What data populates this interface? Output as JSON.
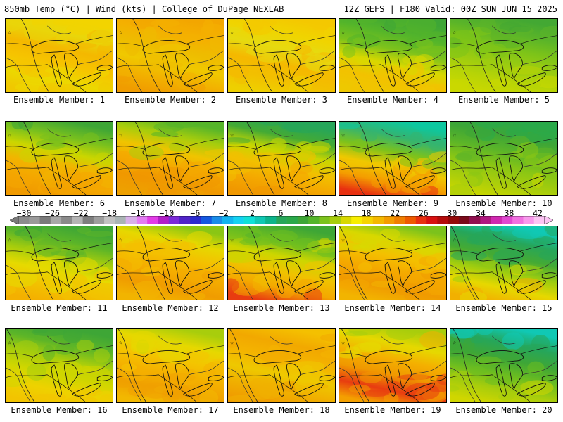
{
  "header": {
    "left": "850mb Temp (°C) | Wind (kts) | College of DuPage NEXLAB",
    "right": "12Z GEFS | F180 Valid: 00Z SUN JUN 15 2025"
  },
  "members": [
    {
      "label": "Ensemble Member: 1",
      "palette": [
        "#f2d400",
        "#e9d60a",
        "#f4b800",
        "#f6c400",
        "#ecd800",
        "#f0c800"
      ]
    },
    {
      "label": "Ensemble Member: 2",
      "palette": [
        "#f3a600",
        "#f4b000",
        "#eebc00",
        "#f0c800",
        "#f2b000",
        "#f09c00"
      ]
    },
    {
      "label": "Ensemble Member: 3",
      "palette": [
        "#f4c800",
        "#f0d400",
        "#e6da10",
        "#f5b800",
        "#f2c000",
        "#eed000"
      ]
    },
    {
      "label": "Ensemble Member: 4",
      "palette": [
        "#3ea636",
        "#54b52a",
        "#7cc21c",
        "#d8d800",
        "#f2c200",
        "#eec800"
      ]
    },
    {
      "label": "Ensemble Member: 5",
      "palette": [
        "#43a833",
        "#5cb528",
        "#7ec418",
        "#9ccc10",
        "#b8d406",
        "#cad800"
      ]
    },
    {
      "label": "Ensemble Member: 6",
      "palette": [
        "#3ea636",
        "#78c01e",
        "#cbd600",
        "#f2b400",
        "#f4a600",
        "#f09a00"
      ]
    },
    {
      "label": "Ensemble Member: 7",
      "palette": [
        "#56b52a",
        "#a8cd0c",
        "#f0c400",
        "#f4a800",
        "#f09800",
        "#eea000"
      ]
    },
    {
      "label": "Ensemble Member: 8",
      "palette": [
        "#26a65a",
        "#44aa34",
        "#c8d600",
        "#f2c000",
        "#f4a800",
        "#f09800"
      ]
    },
    {
      "label": "Ensemble Member: 9",
      "palette": [
        "#0cc8a0",
        "#34b470",
        "#7cc21c",
        "#f0c800",
        "#f49c00",
        "#e83010"
      ]
    },
    {
      "label": "Ensemble Member: 10",
      "palette": [
        "#2aa94a",
        "#3ea636",
        "#5cb528",
        "#8ac614",
        "#a8cd0c",
        "#c6d600"
      ]
    },
    {
      "label": "Ensemble Member: 11",
      "palette": [
        "#3ea636",
        "#5cb528",
        "#a8cd0c",
        "#e6da00",
        "#f2c200",
        "#f4b000"
      ]
    },
    {
      "label": "Ensemble Member: 12",
      "palette": [
        "#8ac614",
        "#e6d800",
        "#f4c000",
        "#f4ac00",
        "#f09c00",
        "#f2b400"
      ]
    },
    {
      "label": "Ensemble Member: 13",
      "palette": [
        "#3ea636",
        "#6cbd20",
        "#cdd600",
        "#f0c200",
        "#f4a800",
        "#e83c10"
      ]
    },
    {
      "label": "Ensemble Member: 14",
      "palette": [
        "#7cc21c",
        "#d8d800",
        "#f4c000",
        "#f4a800",
        "#f09a00",
        "#f2b400"
      ]
    },
    {
      "label": "Ensemble Member: 15",
      "palette": [
        "#10c8b4",
        "#26a65a",
        "#44aa34",
        "#9ccc10",
        "#e6d800",
        "#f2b000"
      ]
    },
    {
      "label": "Ensemble Member: 16",
      "palette": [
        "#3ea636",
        "#5cb528",
        "#a8cd0c",
        "#d0d600",
        "#eed200",
        "#f2c400"
      ]
    },
    {
      "label": "Ensemble Member: 17",
      "palette": [
        "#a8cd0c",
        "#e6d800",
        "#f4c400",
        "#f4b000",
        "#f0a000",
        "#f2b800"
      ]
    },
    {
      "label": "Ensemble Member: 18",
      "palette": [
        "#f4c000",
        "#f2a800",
        "#f4b400",
        "#eec800",
        "#f0b000",
        "#f09c00"
      ]
    },
    {
      "label": "Ensemble Member: 19",
      "palette": [
        "#a8cd0c",
        "#e6d800",
        "#f4b000",
        "#f09800",
        "#e83c10",
        "#f4a000"
      ]
    },
    {
      "label": "Ensemble Member: 20",
      "palette": [
        "#10c8b4",
        "#26a65a",
        "#3ea636",
        "#6cbd20",
        "#a8cd0c",
        "#d0d600"
      ]
    }
  ],
  "colorbar": {
    "tick_labels": [
      "−30",
      "−26",
      "−22",
      "−18",
      "−14",
      "−10",
      "−6",
      "−2",
      "2",
      "6",
      "10",
      "14",
      "18",
      "22",
      "26",
      "30",
      "34",
      "38",
      "42"
    ],
    "colors": [
      "#8c8c8c",
      "#9a9a9a",
      "#7a7a7a",
      "#a8a8a8",
      "#8a8a8a",
      "#b4b4b4",
      "#7e7e7e",
      "#9e9e9e",
      "#c2c2c2",
      "#aab4b4",
      "#d8b0e8",
      "#e37cf2",
      "#e23ce6",
      "#b21ec8",
      "#7a2ad8",
      "#5024c8",
      "#2a2ad0",
      "#1458e0",
      "#1a8ce8",
      "#12b4f0",
      "#14d2f2",
      "#10e0d8",
      "#10c8b4",
      "#0cb48c",
      "#26a65a",
      "#2aa94a",
      "#3ea636",
      "#54b52a",
      "#7cc21c",
      "#a8cd0c",
      "#d8d800",
      "#f8ee00",
      "#f6d400",
      "#f4b800",
      "#f49c00",
      "#f07e00",
      "#ee5a00",
      "#e83010",
      "#d81010",
      "#b40c0c",
      "#940a0a",
      "#7a0a1a",
      "#901050",
      "#b01880",
      "#d028b0",
      "#e048d0",
      "#f070e0",
      "#f898ec",
      "#fcc4f4"
    ]
  }
}
